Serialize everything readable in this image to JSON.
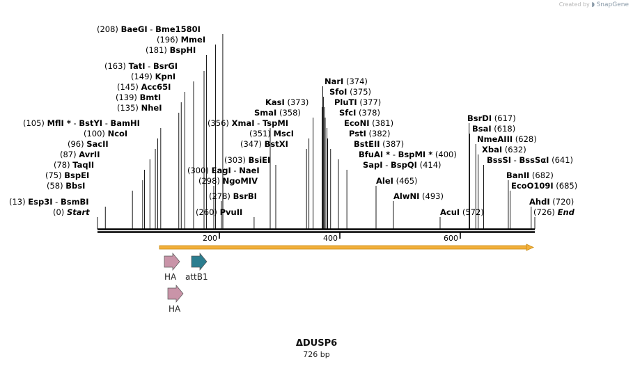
{
  "credit": {
    "prefix": "Created by",
    "brand": "SnapGene"
  },
  "plasmid": {
    "name": "ΔDUSP6",
    "length": "726 bp",
    "bp_total": 726
  },
  "colors": {
    "backbone": "#000000",
    "orf_fill": "#f2b03c",
    "orf_edge": "#c98a10",
    "ha": "#c994a8",
    "attB1": "#2b7d8f"
  },
  "ruler": {
    "ticks": [
      200,
      400,
      600
    ]
  },
  "sites": [
    {
      "name": "Esp3I",
      "name2": "BsmBI",
      "pos": 13,
      "label": "(13)"
    },
    {
      "name": "Start",
      "italic": true,
      "pos": 0,
      "label": "(0)"
    },
    {
      "name": "BbsI",
      "pos": 58,
      "label": "(58)"
    },
    {
      "name": "BspEI",
      "pos": 75,
      "label": "(75)"
    },
    {
      "name": "TaqII",
      "pos": 78,
      "label": "(78)"
    },
    {
      "name": "AvrII",
      "pos": 87,
      "label": "(87)"
    },
    {
      "name": "SacII",
      "pos": 96,
      "label": "(96)"
    },
    {
      "name": "NcoI",
      "pos": 100,
      "label": "(100)"
    },
    {
      "name": "MflI",
      "star": true,
      "name2": "BstYI",
      "name3": "BamHI",
      "pos": 105,
      "label": "(105)"
    },
    {
      "name": "NheI",
      "pos": 135,
      "label": "(135)"
    },
    {
      "name": "BmtI",
      "pos": 139,
      "label": "(139)"
    },
    {
      "name": "Acc65I",
      "pos": 145,
      "label": "(145)"
    },
    {
      "name": "KpnI",
      "pos": 149,
      "label": "(149)"
    },
    {
      "name": "TatI",
      "name2": "BsrGI",
      "pos": 163,
      "label": "(163)"
    },
    {
      "name": "BspHI",
      "pos": 181,
      "label": "(181)"
    },
    {
      "name": "MmeI",
      "pos": 196,
      "label": "(196)"
    },
    {
      "name": "BaeGI",
      "name2": "Bme1580I",
      "pos": 208,
      "label": "(208)"
    },
    {
      "name": "PvuII",
      "pos": 260,
      "label": "(260)"
    },
    {
      "name": "BsrBI",
      "pos": 278,
      "label": "(278)"
    },
    {
      "name": "NgoMIV",
      "pos": 298,
      "label": "(298)"
    },
    {
      "name": "EagI",
      "name2": "NaeI",
      "pos": 300,
      "label": "(300)"
    },
    {
      "name": "BsiEI",
      "pos": 303,
      "label": "(303)"
    },
    {
      "name": "XmaI",
      "name2": "TspMI",
      "pos": 356,
      "label": "(356)"
    },
    {
      "name": "BstXI",
      "pos": 347,
      "label": "(347)"
    },
    {
      "name": "MscI",
      "pos": 351,
      "label": "(351)"
    },
    {
      "name": "SmaI",
      "pos": 358,
      "label": "(358)"
    },
    {
      "name": "KasI",
      "pos": 373,
      "label": "(373)"
    },
    {
      "name": "NarI",
      "pos": 374,
      "label": "(374)"
    },
    {
      "name": "SfoI",
      "pos": 375,
      "label": "(375)"
    },
    {
      "name": "PluTI",
      "pos": 377,
      "label": "(377)"
    },
    {
      "name": "SfcI",
      "pos": 378,
      "label": "(378)"
    },
    {
      "name": "EcoNI",
      "pos": 381,
      "label": "(381)"
    },
    {
      "name": "PstI",
      "pos": 382,
      "label": "(382)"
    },
    {
      "name": "BstEII",
      "pos": 387,
      "label": "(387)"
    },
    {
      "name": "BfuAI",
      "star": true,
      "name2": "BspMI",
      "star2": true,
      "pos": 400,
      "label": "(400)"
    },
    {
      "name": "SapI",
      "name2": "BspQI",
      "pos": 414,
      "label": "(414)"
    },
    {
      "name": "AleI",
      "pos": 465,
      "label": "(465)"
    },
    {
      "name": "AlwNI",
      "pos": 493,
      "label": "(493)"
    },
    {
      "name": "AcuI",
      "pos": 572,
      "label": "(572)"
    },
    {
      "name": "BsrDI",
      "pos": 617,
      "label": "(617)"
    },
    {
      "name": "BsaI",
      "pos": 618,
      "label": "(618)"
    },
    {
      "name": "NmeAIII",
      "pos": 628,
      "label": "(628)"
    },
    {
      "name": "XbaI",
      "pos": 632,
      "label": "(632)"
    },
    {
      "name": "BssSI",
      "name2": "BssSαI",
      "pos": 641,
      "label": "(641)"
    },
    {
      "name": "BanII",
      "pos": 682,
      "label": "(682)"
    },
    {
      "name": "EcoO109I",
      "pos": 685,
      "label": "(685)"
    },
    {
      "name": "AhdI",
      "pos": 720,
      "label": "(720)"
    },
    {
      "name": "End",
      "italic": true,
      "pos": 726,
      "label": "(726)"
    }
  ],
  "features": [
    {
      "name": "HA",
      "color": "ha"
    },
    {
      "name": "attB1",
      "color": "attB1"
    },
    {
      "name": "HA",
      "color": "ha"
    }
  ]
}
